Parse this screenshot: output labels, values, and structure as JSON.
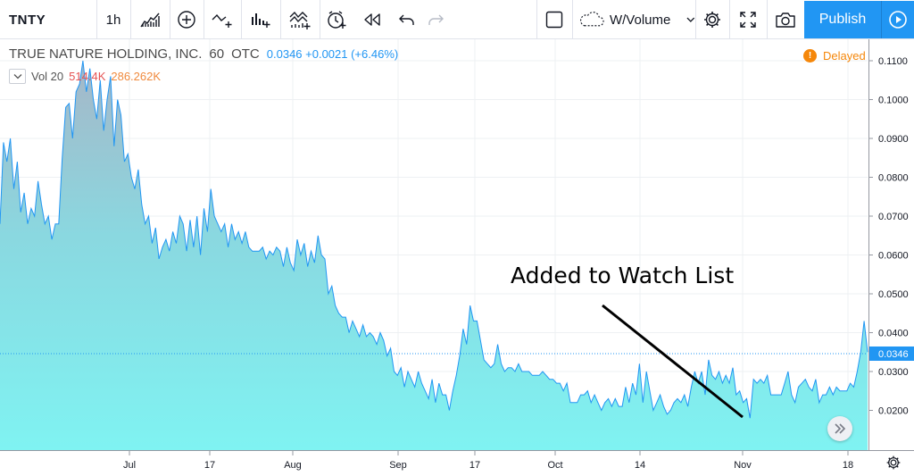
{
  "toolbar": {
    "symbol": "TNTY",
    "interval": "1h",
    "chart_template": "W/Volume",
    "publish_label": "Publish"
  },
  "legend": {
    "name": "TRUE NATURE HOLDING, INC.",
    "interval": "60",
    "exchange": "OTC",
    "quote": "0.0346 +0.0021 (+6.46%)",
    "volume_label": "Vol 20",
    "volume_value": "514.4K",
    "volume_ma": "286.262K",
    "status": "Delayed"
  },
  "annotation": "Added to Watch List",
  "chart_data": {
    "type": "area",
    "title": "TRUE NATURE HOLDING, INC. · 60 · OTC",
    "xlabel": "",
    "ylabel": "",
    "x_ticks": [
      "Jul",
      "17",
      "Aug",
      "Sep",
      "17",
      "Oct",
      "14",
      "Nov",
      "18"
    ],
    "y_ticks": [
      "0.1100",
      "0.1000",
      "0.0900",
      "0.0800",
      "0.0700",
      "0.0600",
      "0.0500",
      "0.0400",
      "0.0300",
      "0.0200"
    ],
    "ylim": [
      0.012,
      0.112
    ],
    "last_price": "0.0346",
    "colors": {
      "line": "#2196f3",
      "fill_top": "#9eb8cc",
      "fill_bottom": "#7ff0f0",
      "last": "#2196f3"
    },
    "series": [
      {
        "values": [
          0.068,
          0.089,
          0.084,
          0.09,
          0.077,
          0.084,
          0.071,
          0.076,
          0.068,
          0.072,
          0.07,
          0.079,
          0.073,
          0.068,
          0.07,
          0.064,
          0.068,
          0.068,
          0.085,
          0.098,
          0.099,
          0.09,
          0.102,
          0.104,
          0.11,
          0.102,
          0.108,
          0.1,
          0.095,
          0.105,
          0.092,
          0.1,
          0.106,
          0.088,
          0.1,
          0.096,
          0.084,
          0.086,
          0.08,
          0.077,
          0.082,
          0.073,
          0.068,
          0.07,
          0.063,
          0.067,
          0.059,
          0.062,
          0.064,
          0.061,
          0.066,
          0.063,
          0.07,
          0.068,
          0.061,
          0.069,
          0.062,
          0.07,
          0.06,
          0.072,
          0.066,
          0.077,
          0.07,
          0.068,
          0.066,
          0.068,
          0.062,
          0.068,
          0.064,
          0.066,
          0.063,
          0.066,
          0.062,
          0.061,
          0.061,
          0.061,
          0.062,
          0.059,
          0.061,
          0.06,
          0.062,
          0.061,
          0.057,
          0.062,
          0.058,
          0.056,
          0.064,
          0.06,
          0.063,
          0.057,
          0.061,
          0.058,
          0.065,
          0.06,
          0.059,
          0.05,
          0.052,
          0.047,
          0.045,
          0.044,
          0.044,
          0.04,
          0.043,
          0.041,
          0.039,
          0.042,
          0.039,
          0.04,
          0.039,
          0.037,
          0.04,
          0.038,
          0.034,
          0.036,
          0.03,
          0.029,
          0.031,
          0.026,
          0.03,
          0.028,
          0.026,
          0.03,
          0.027,
          0.025,
          0.023,
          0.028,
          0.022,
          0.027,
          0.024,
          0.024,
          0.02,
          0.025,
          0.029,
          0.034,
          0.041,
          0.037,
          0.047,
          0.043,
          0.043,
          0.038,
          0.033,
          0.032,
          0.031,
          0.032,
          0.037,
          0.032,
          0.03,
          0.031,
          0.031,
          0.03,
          0.032,
          0.03,
          0.03,
          0.03,
          0.029,
          0.029,
          0.029,
          0.03,
          0.029,
          0.028,
          0.028,
          0.027,
          0.027,
          0.025,
          0.027,
          0.022,
          0.022,
          0.022,
          0.024,
          0.024,
          0.025,
          0.022,
          0.024,
          0.022,
          0.02,
          0.022,
          0.023,
          0.021,
          0.023,
          0.021,
          0.021,
          0.026,
          0.022,
          0.027,
          0.024,
          0.032,
          0.022,
          0.03,
          0.025,
          0.02,
          0.022,
          0.024,
          0.021,
          0.019,
          0.02,
          0.022,
          0.023,
          0.022,
          0.024,
          0.021,
          0.026,
          0.03,
          0.027,
          0.03,
          0.024,
          0.033,
          0.029,
          0.028,
          0.03,
          0.027,
          0.029,
          0.027,
          0.031,
          0.024,
          0.025,
          0.022,
          0.023,
          0.018,
          0.028,
          0.027,
          0.028,
          0.027,
          0.029,
          0.024,
          0.024,
          0.024,
          0.024,
          0.027,
          0.03,
          0.024,
          0.022,
          0.026,
          0.027,
          0.028,
          0.026,
          0.025,
          0.028,
          0.022,
          0.024,
          0.024,
          0.026,
          0.024,
          0.026,
          0.025,
          0.025,
          0.025,
          0.027,
          0.026,
          0.03,
          0.035,
          0.043,
          0.035
        ]
      }
    ]
  }
}
